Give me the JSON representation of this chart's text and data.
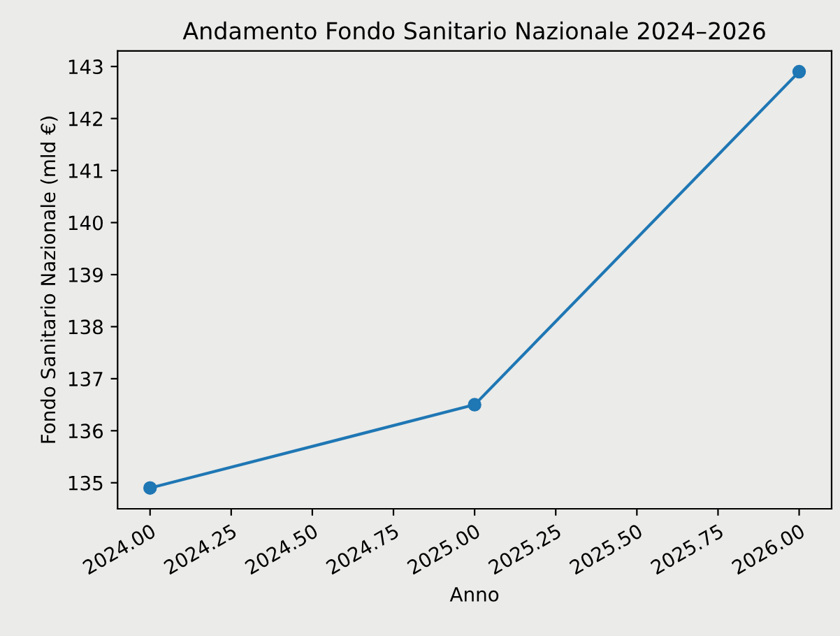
{
  "chart_data": {
    "type": "line",
    "title": "Andamento Fondo Sanitario Nazionale 2024–2026",
    "xlabel": "Anno",
    "ylabel": "Fondo Sanitario Nazionale (mld €)",
    "x": [
      2024,
      2025,
      2026
    ],
    "series": [
      {
        "color": "#1f77b4",
        "values": [
          134.9,
          136.5,
          142.9
        ]
      }
    ],
    "xlim": [
      2023.9,
      2026.1
    ],
    "xticks": [
      {
        "value": 2024,
        "label": "2024.00"
      },
      {
        "value": 2024.25,
        "label": "2024.25"
      },
      {
        "value": 2024.5,
        "label": "2024.50"
      },
      {
        "value": 2024.75,
        "label": "2024.75"
      },
      {
        "value": 2025,
        "label": "2025.00"
      },
      {
        "value": 2025.25,
        "label": "2025.25"
      },
      {
        "value": 2025.5,
        "label": "2025.50"
      },
      {
        "value": 2025.75,
        "label": "2025.75"
      },
      {
        "value": 2026,
        "label": "2026.00"
      }
    ],
    "ylim": [
      134.5,
      143.3
    ],
    "yticks": [
      135,
      136,
      137,
      138,
      139,
      140,
      141,
      142,
      143
    ],
    "grid": false,
    "legend": false,
    "marker": "circle",
    "line_style": "solid"
  }
}
